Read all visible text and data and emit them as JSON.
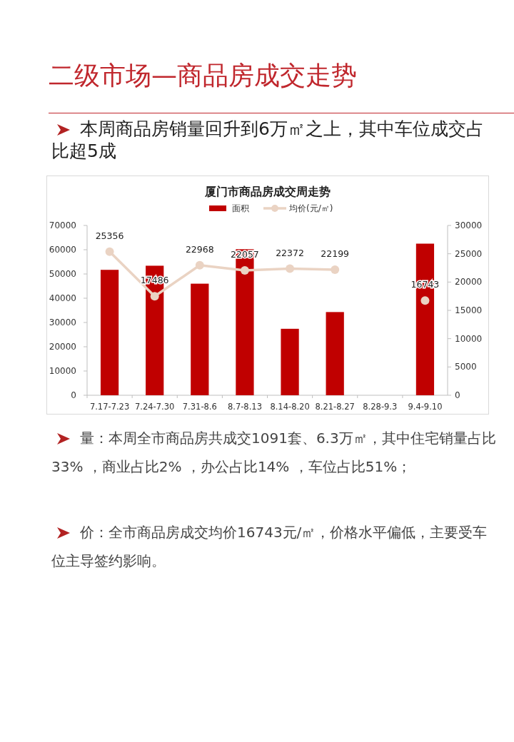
{
  "chart_data": {
    "type": "bar",
    "title": "厦门市商品房成交周走势",
    "categories": [
      "7.17-7.23",
      "7.24-7.30",
      "7.31-8.6",
      "8.7-8.13",
      "8.14-8.20",
      "8.21-8.27",
      "8.28-9.3",
      "9.4-9.10"
    ],
    "series": [
      {
        "name": "面积",
        "color": "#c00000",
        "values": [
          51700,
          53400,
          46000,
          60200,
          27400,
          34300,
          null,
          62500
        ]
      },
      {
        "name": "均价(元/㎡)",
        "type": "line",
        "axis": "y2",
        "color": "#ead3c3",
        "marker": "circle",
        "data_labels": true,
        "values": [
          25356,
          17486,
          22968,
          22057,
          22372,
          22199,
          null,
          16743
        ]
      }
    ],
    "ylim": [
      0,
      70000
    ],
    "yticks": [
      0,
      10000,
      20000,
      30000,
      40000,
      50000,
      60000,
      70000
    ],
    "y2lim": [
      0,
      30000
    ],
    "y2ticks": [
      0,
      5000,
      10000,
      15000,
      20000,
      25000,
      30000
    ],
    "legend": "top",
    "grid": false,
    "annotations": [
      "二级市场—商品房成交走势",
      "本周商品房销量回升到6万㎡之上，其中车位成交占比超5成",
      "量：本周全市商品房共成交1091套、6.3万㎡，其中住宅销量占比33% ，商业占比2% ，办公占比14% ，车位占比51%；",
      "价：全市商品房成交均价16743元/㎡，价格水平偏低，主要受车位主导签约影响。"
    ]
  }
}
